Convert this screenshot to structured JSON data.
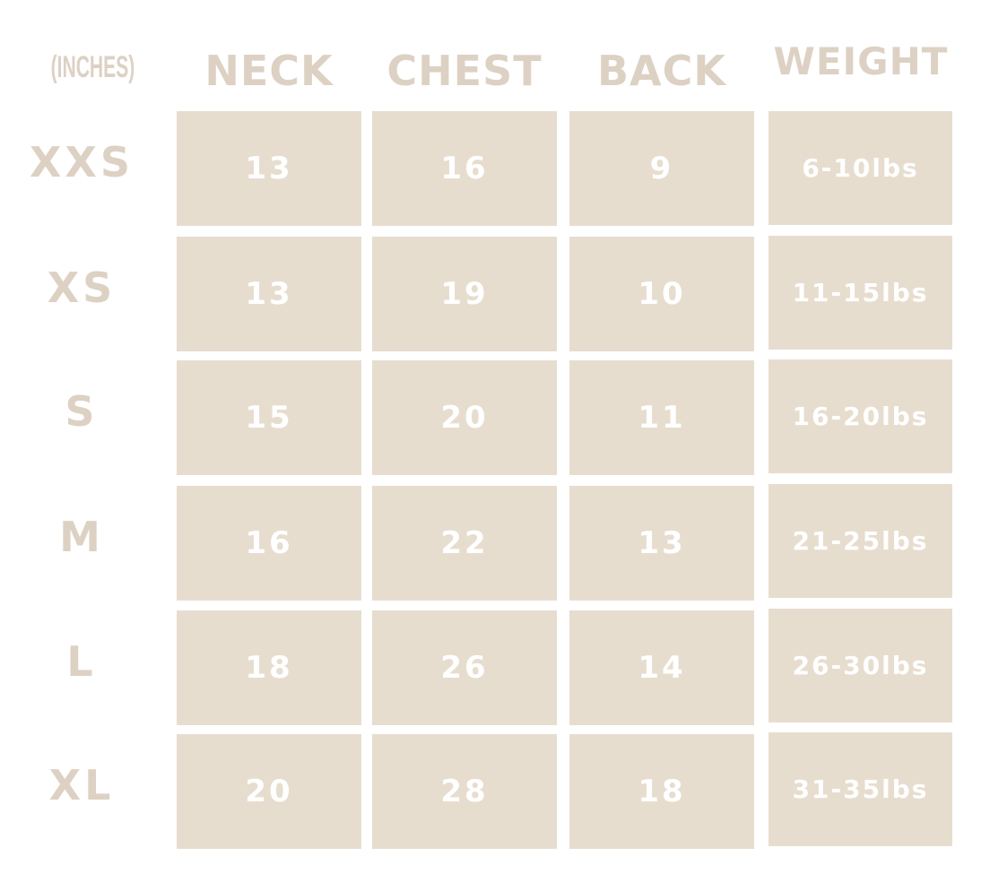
{
  "unit_label": "(INCHES)",
  "columns": [
    "NECK",
    "CHEST",
    "BACK",
    "WEIGHT"
  ],
  "rows": [
    {
      "size": "XXS",
      "neck": "13",
      "chest": "16",
      "back": "9",
      "weight": "6-10lbs"
    },
    {
      "size": "XS",
      "neck": "13",
      "chest": "19",
      "back": "10",
      "weight": "11-15lbs"
    },
    {
      "size": "S",
      "neck": "15",
      "chest": "20",
      "back": "11",
      "weight": "16-20lbs"
    },
    {
      "size": "M",
      "neck": "16",
      "chest": "22",
      "back": "13",
      "weight": "21-25lbs"
    },
    {
      "size": "L",
      "neck": "18",
      "chest": "26",
      "back": "14",
      "weight": "26-30lbs"
    },
    {
      "size": "XL",
      "neck": "20",
      "chest": "28",
      "back": "18",
      "weight": "31-35lbs"
    }
  ],
  "colors": {
    "cell": "#e7ddcf",
    "label": "#ddd1c4",
    "cell_text": "#ffffff"
  }
}
